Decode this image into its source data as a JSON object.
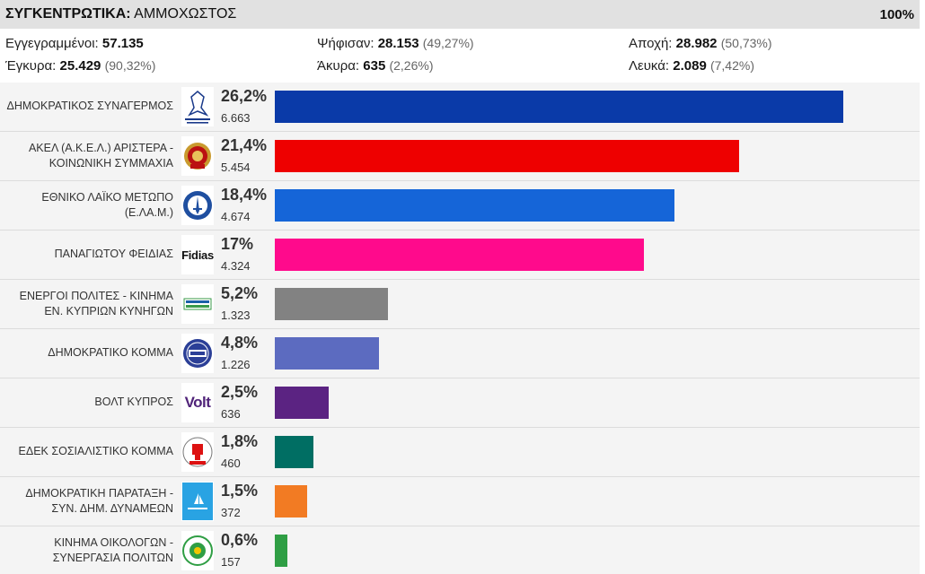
{
  "header": {
    "title_bold": "ΣΥΓΚΕΝΤΡΩΤΙΚΑ:",
    "title_rest": "ΑΜΜΟΧΩΣΤΟΣ",
    "counted": "100%"
  },
  "stats": {
    "registered": {
      "label": "Εγγεγραμμένοι:",
      "value": "57.135"
    },
    "voted": {
      "label": "Ψήφισαν:",
      "value": "28.153",
      "pct": "(49,27%)"
    },
    "abstention": {
      "label": "Αποχή:",
      "value": "28.982",
      "pct": "(50,73%)"
    },
    "valid": {
      "label": "Έγκυρα:",
      "value": "25.429",
      "pct": "(90,32%)"
    },
    "invalid": {
      "label": "Άκυρα:",
      "value": "635",
      "pct": "(2,26%)"
    },
    "blank": {
      "label": "Λευκά:",
      "value": "2.089",
      "pct": "(7,42%)"
    }
  },
  "chart_data": {
    "type": "bar",
    "orientation": "horizontal",
    "categories": [
      "ΔΗΜΟΚΡΑΤΙΚΟΣ ΣΥΝΑΓΕΡΜΟΣ",
      "ΑΚΕΛ (Α.Κ.Ε.Λ.) ΑΡΙΣΤΕΡΑ - ΚΟΙΝΩΝΙΚΗ ΣΥΜΜΑΧΙΑ",
      "ΕΘΝΙΚΟ ΛΑΪΚΟ ΜΕΤΩΠΟ (Ε.ΛΑ.Μ.)",
      "ΠΑΝΑΓΙΩΤΟΥ ΦΕΙΔΙΑΣ",
      "ΕΝΕΡΓΟΙ ΠΟΛΙΤΕΣ - ΚΙΝΗΜΑ ΕΝ. ΚΥΠΡΙΩΝ ΚΥΝΗΓΩΝ",
      "ΔΗΜΟΚΡΑΤΙΚΟ ΚΟΜΜΑ",
      "ΒΟΛΤ ΚΥΠΡΟΣ",
      "ΕΔΕΚ ΣΟΣΙΑΛΙΣΤΙΚΟ ΚΟΜΜΑ",
      "ΔΗΜΟΚΡΑΤΙΚΗ ΠΑΡΑΤΑΞΗ - ΣΥΝ. ΔΗΜ. ΔΥΝΑΜΕΩΝ",
      "ΚΙΝΗΜΑ ΟΙΚΟΛΟΓΩΝ - ΣΥΝΕΡΓΑΣΙΑ ΠΟΛΙΤΩΝ"
    ],
    "values": [
      26.2,
      21.4,
      18.4,
      17,
      5.2,
      4.8,
      2.5,
      1.8,
      1.5,
      0.6
    ],
    "pct_labels": [
      "26,2%",
      "21,4%",
      "18,4%",
      "17%",
      "5,2%",
      "4,8%",
      "2,5%",
      "1,8%",
      "1,5%",
      "0,6%"
    ],
    "votes": [
      "6.663",
      "5.454",
      "4.674",
      "4.324",
      "1.323",
      "1.226",
      "636",
      "460",
      "372",
      "157"
    ],
    "colors": [
      "#0a3aa8",
      "#ee0000",
      "#1565d8",
      "#ff0a8c",
      "#828282",
      "#5c6bc0",
      "#5b2382",
      "#006e63",
      "#f27b23",
      "#2f9e44"
    ],
    "logos": [
      "disy-logo",
      "akel-logo",
      "elam-logo",
      "fidias-logo",
      "active-citizens-logo",
      "diko-logo",
      "volt-logo",
      "edek-logo",
      "dipa-logo",
      "greens-logo"
    ],
    "logo_text": {
      "fidias": "Fidias",
      "volt": "Volt"
    },
    "xlim": [
      0,
      26.2
    ]
  }
}
